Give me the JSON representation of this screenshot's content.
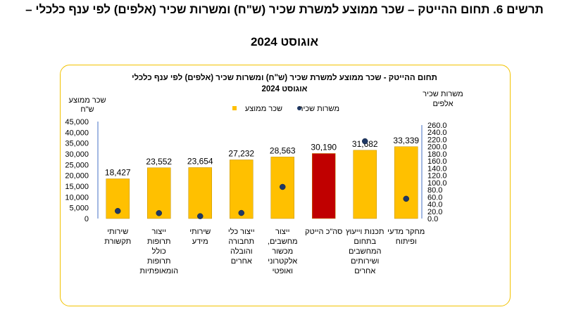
{
  "page": {
    "title": "תרשים 6. תחום ההייטק – שכר ממוצע למשרת שכיר (ש\"ח) ומשרות שכיר (אלפים) לפי ענף כלכלי –",
    "subtitle": "אוגוסט 2024"
  },
  "chart_data": {
    "type": "bar",
    "title": "תחום ההייטק -  שכר ממוצע למשרת שכיר (ש\"ח) ומשרות שכיר (אלפים) לפי ענף כלכלי",
    "subtitle": "אוגוסט 2024",
    "y_left_label_line1": "שכר ממוצע",
    "y_left_label_line2": "ש\"ח",
    "y_right_label_line1": "משרות שכיר",
    "y_right_label_line2": "אלפים",
    "y_left_ticks": [
      "45,000",
      "40,000",
      "35,000",
      "30,000",
      "25,000",
      "20,000",
      "15,000",
      "10,000",
      "5,000",
      "0"
    ],
    "y_right_ticks": [
      "260.0",
      "240.0",
      "220.0",
      "200.0",
      "180.0",
      "160.0",
      "140.0",
      "120.0",
      "100.0",
      "80.0",
      "60.0",
      "40.0",
      "20.0",
      "0.0"
    ],
    "ylim_left": [
      0,
      45000
    ],
    "ylim_right": [
      0,
      260
    ],
    "categories": [
      [
        "שירותי",
        "תקשורת"
      ],
      [
        "ייצור",
        "תרופות",
        "כולל",
        "תרופות",
        "הומאופתיות"
      ],
      [
        "שירותי",
        "מידע"
      ],
      [
        "ייצור כלי",
        "תחבורה",
        "והובלה",
        "אחרים"
      ],
      [
        "ייצור",
        "מחשבים,",
        "מכשור",
        "אלקטרוני",
        "ואופטי"
      ],
      [
        "סה\"כ הייטק"
      ],
      [
        "תכנות וייעוץ",
        "בתחום",
        "המחשבים",
        "ושירותים",
        "אחרים"
      ],
      [
        "מחקר מדעי",
        "ופיתוח"
      ]
    ],
    "series": [
      {
        "name": "שכר ממוצע",
        "axis": "left",
        "values": [
          18427,
          23552,
          23654,
          27232,
          28563,
          30190,
          31682,
          33339
        ],
        "labels": [
          "18,427",
          "23,552",
          "23,654",
          "27,232",
          "28,563",
          "30,190",
          "31,682",
          "33,339"
        ],
        "color": "#ffc000",
        "highlight_color": "#c00000",
        "highlight_index": 5
      },
      {
        "name": "משרות שכיר",
        "axis": "right",
        "values": [
          21.0,
          15.0,
          6.5,
          15.5,
          88.0,
          null,
          215.0,
          55.0
        ],
        "color": "#1f3864"
      }
    ],
    "legend": {
      "position": "top-center",
      "order": [
        "משרות שכיר",
        "שכר ממוצע"
      ]
    },
    "grid": false
  }
}
